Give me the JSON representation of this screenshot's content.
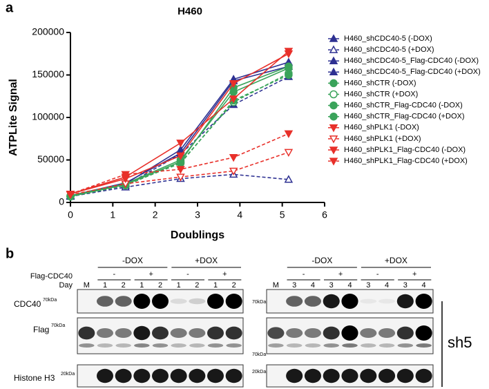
{
  "chart_data": {
    "type": "line",
    "panel_label": "a",
    "title": "H460",
    "x_label": "Doublings",
    "y_label": "ATPLite Signal",
    "x": [
      0,
      1.3,
      2.6,
      3.85,
      5.15
    ],
    "xlim": [
      0,
      6
    ],
    "xticks": [
      0,
      1,
      2,
      3,
      4,
      5,
      6
    ],
    "ylim": [
      0,
      200000
    ],
    "yticks": [
      0,
      50000,
      100000,
      150000,
      200000
    ],
    "legend": "right",
    "series": [
      {
        "name": "H460_shCDC40-5 (-DOX)",
        "color": "#2e3192",
        "marker": "triangle-up",
        "fill": "filled",
        "dashed": false,
        "values": [
          8000,
          22000,
          62000,
          145000,
          165000
        ]
      },
      {
        "name": "H460_shCDC40-5 (+DOX)",
        "color": "#2e3192",
        "marker": "triangle-up",
        "fill": "open",
        "dashed": true,
        "values": [
          7000,
          18000,
          28000,
          33000,
          27000
        ]
      },
      {
        "name": "H460_shCDC40-5_Flag-CDC40 (-DOX)",
        "color": "#2e3192",
        "marker": "triangle-up",
        "fill": "half",
        "dashed": false,
        "values": [
          8000,
          23000,
          58000,
          143000,
          160000
        ]
      },
      {
        "name": "H460_shCDC40-5_Flag-CDC40 (+DOX)",
        "color": "#2e3192",
        "marker": "triangle-up",
        "fill": "half",
        "dashed": true,
        "values": [
          7000,
          20000,
          57000,
          115000,
          148000
        ]
      },
      {
        "name": "H460_shCTR (-DOX)",
        "color": "#3aa35a",
        "marker": "circle",
        "fill": "filled",
        "dashed": false,
        "values": [
          7000,
          21000,
          48000,
          135000,
          160000
        ]
      },
      {
        "name": "H460_shCTR (+DOX)",
        "color": "#3aa35a",
        "marker": "circle",
        "fill": "open",
        "dashed": true,
        "values": [
          7000,
          20000,
          47000,
          118000,
          152000
        ]
      },
      {
        "name": "H460_shCTR_Flag-CDC40 (-DOX)",
        "color": "#3aa35a",
        "marker": "circle",
        "fill": "half",
        "dashed": false,
        "values": [
          8000,
          22000,
          50000,
          130000,
          158000
        ]
      },
      {
        "name": "H460_shCTR_Flag-CDC40 (+DOX)",
        "color": "#3aa35a",
        "marker": "circle",
        "fill": "half",
        "dashed": true,
        "values": [
          7000,
          21000,
          46000,
          120000,
          150000
        ]
      },
      {
        "name": "H460_shPLK1 (-DOX)",
        "color": "#e8302a",
        "marker": "triangle-down",
        "fill": "filled",
        "dashed": false,
        "values": [
          10000,
          30000,
          70000,
          122000,
          178000
        ]
      },
      {
        "name": "H460_shPLK1 (+DOX)",
        "color": "#e8302a",
        "marker": "triangle-down",
        "fill": "open",
        "dashed": true,
        "values": [
          9000,
          22000,
          30000,
          37000,
          59000
        ]
      },
      {
        "name": "H460_shPLK1_Flag-CDC40 (-DOX)",
        "color": "#e8302a",
        "marker": "triangle-down",
        "fill": "half",
        "dashed": false,
        "values": [
          10000,
          28000,
          55000,
          140000,
          175000
        ]
      },
      {
        "name": "H460_shPLK1_Flag-CDC40 (+DOX)",
        "color": "#e8302a",
        "marker": "triangle-down",
        "fill": "half",
        "dashed": true,
        "values": [
          10000,
          33000,
          39000,
          53000,
          81000
        ]
      }
    ]
  },
  "panel_b": {
    "label": "b",
    "side_label": "sh5",
    "flag_label": "Flag-CDC40",
    "day_label": "Day",
    "left": {
      "marker": "M",
      "groups": [
        "-DOX",
        "+DOX"
      ],
      "flag_signs": [
        "-",
        "+",
        "-",
        "+"
      ],
      "days": [
        "1",
        "2",
        "1",
        "2",
        "1",
        "2",
        "1",
        "2"
      ],
      "blots": [
        {
          "name": "CDC40",
          "size": "70kDa"
        },
        {
          "name": "Flag",
          "size": "70kDa"
        },
        {
          "name": "Histone H3",
          "size": "20kDa"
        }
      ]
    },
    "right": {
      "marker": "M",
      "groups": [
        "-DOX",
        "+DOX"
      ],
      "flag_signs": [
        "-",
        "+",
        "-",
        "+"
      ],
      "days": [
        "3",
        "4",
        "3",
        "4",
        "3",
        "4",
        "3",
        "4"
      ],
      "sizes": [
        "70kDa",
        "70kDa",
        "20kDa"
      ]
    }
  }
}
